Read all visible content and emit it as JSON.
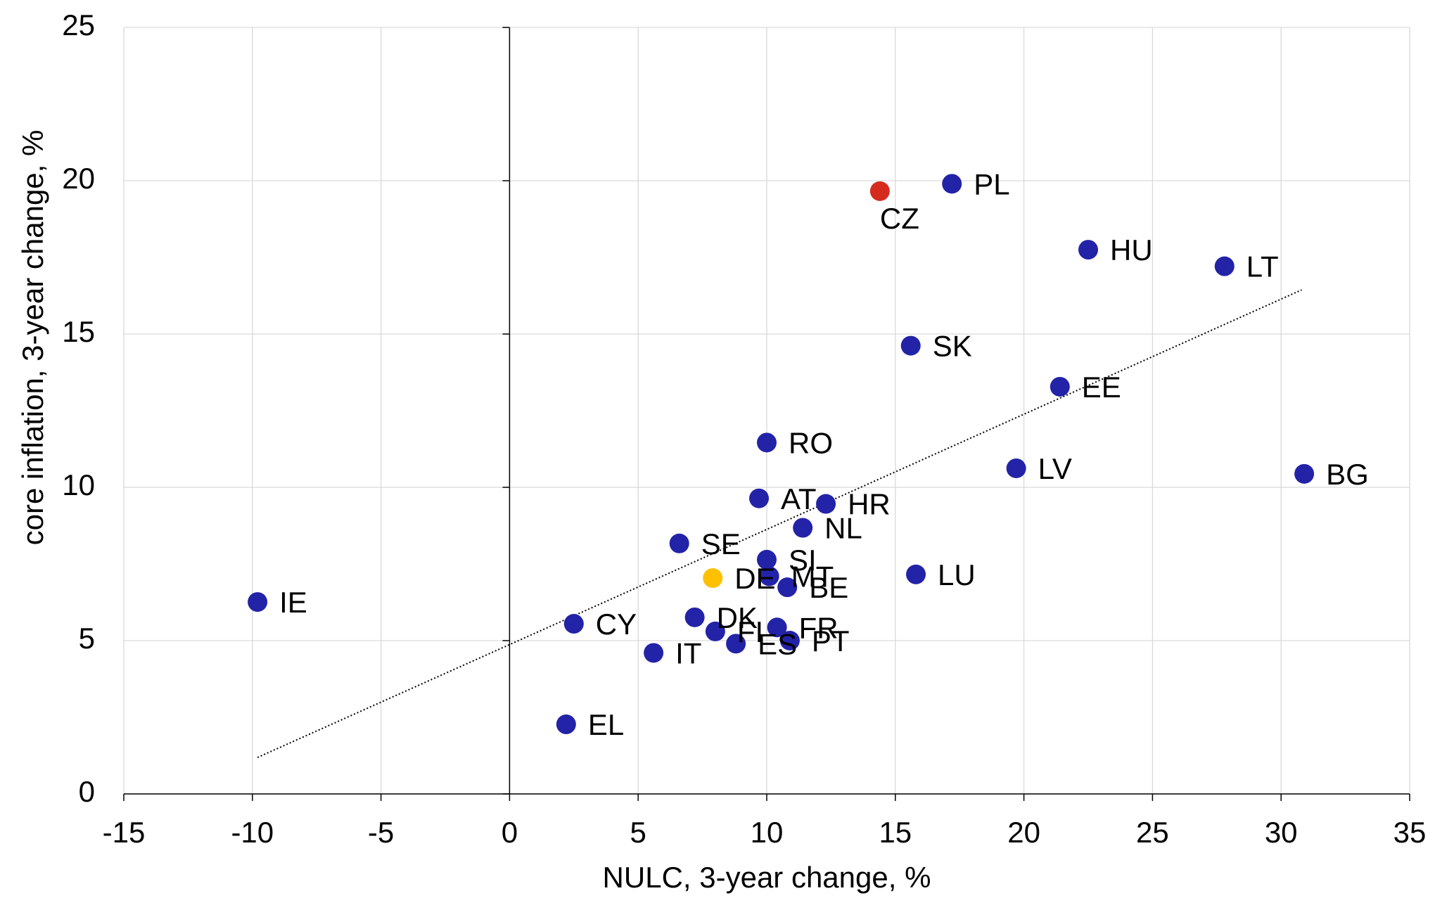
{
  "chart_data": {
    "type": "scatter",
    "x_label": "NULC, 3-year change, %",
    "y_label": "core inflation, 3-year change, %",
    "xlim": [
      -15,
      35
    ],
    "ylim": [
      0,
      25
    ],
    "xticks": [
      -15,
      -10,
      -5,
      0,
      5,
      10,
      15,
      20,
      25,
      30,
      35
    ],
    "yticks": [
      0,
      5,
      10,
      15,
      20,
      25
    ],
    "grid": true,
    "points": {
      "labels": [
        "IE",
        "CY",
        "EL",
        "IT",
        "DK",
        "FI",
        "ES",
        "FR",
        "PT",
        "DE",
        "MT",
        "SI",
        "BE",
        "SE",
        "NL",
        "AT",
        "HR",
        "RO",
        "LU",
        "LV",
        "SK",
        "EE",
        "BG",
        "HU",
        "LT",
        "PL",
        "CZ"
      ],
      "x": [
        -9.8,
        2.5,
        2.2,
        5.6,
        7.2,
        8.0,
        8.8,
        10.4,
        10.9,
        7.9,
        10.1,
        10.0,
        10.8,
        6.6,
        11.4,
        9.7,
        12.3,
        10.0,
        15.8,
        19.7,
        15.6,
        21.4,
        30.9,
        22.5,
        27.8,
        17.2,
        14.4
      ],
      "y": [
        6.26,
        5.55,
        2.27,
        4.6,
        5.76,
        5.3,
        4.9,
        5.43,
        5.0,
        7.04,
        7.1,
        7.64,
        6.74,
        8.17,
        8.68,
        9.64,
        9.46,
        11.46,
        7.16,
        10.62,
        14.62,
        13.28,
        10.44,
        17.75,
        17.21,
        19.9,
        19.66
      ],
      "colors": [
        "#2323a8",
        "#2323a8",
        "#2323a8",
        "#2323a8",
        "#2323a8",
        "#2323a8",
        "#2323a8",
        "#2323a8",
        "#2323a8",
        "#ffc000",
        "#2323a8",
        "#2323a8",
        "#2323a8",
        "#2323a8",
        "#2323a8",
        "#2323a8",
        "#2323a8",
        "#2323a8",
        "#2323a8",
        "#2323a8",
        "#2323a8",
        "#2323a8",
        "#2323a8",
        "#2323a8",
        "#2323a8",
        "#2323a8",
        "#d52b1e"
      ]
    },
    "trendline": {
      "x": [
        -9.8,
        30.8
      ],
      "y": [
        1.19,
        16.44
      ],
      "color": "#000000"
    }
  }
}
